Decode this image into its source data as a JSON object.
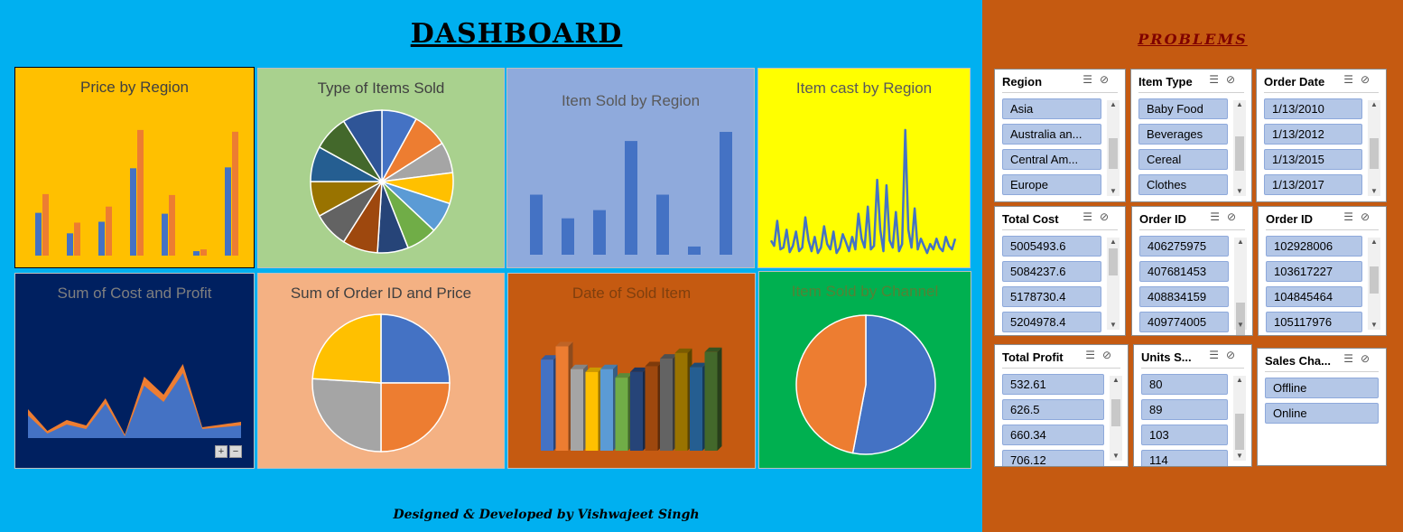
{
  "header": {
    "title": "DASHBOARD",
    "problems_title": "PROBLEMS",
    "footer": "Designed & Developed by Vishwajeet Singh"
  },
  "colors": {
    "left_bg": "#00B0F0",
    "right_bg": "#C55A11",
    "blue": "#4472C4",
    "orange": "#ED7D31",
    "gray": "#A5A5A5",
    "gold": "#FFC000",
    "lightblue": "#5B9BD5",
    "green": "#70AD47"
  },
  "panels": {
    "price_by_region": {
      "title": "Price by Region",
      "bg": "#FFC000"
    },
    "type_items_sold": {
      "title": "Type of Items Sold",
      "bg": "#A9D18E"
    },
    "item_sold_region": {
      "title": "Item Sold by Region",
      "bg": "#8FAADC"
    },
    "item_cast_region": {
      "title": "Item cast by Region",
      "bg": "#FFFF00"
    },
    "cost_profit": {
      "title": "Sum of Cost and Profit",
      "bg": "#002060"
    },
    "orderid_price": {
      "title": "Sum of Order ID and Price",
      "bg": "#F4B183"
    },
    "date_sold": {
      "title": "Date of Sold Item",
      "bg": "#C55A11"
    },
    "sold_channel": {
      "title": "Item Sold by Channel",
      "bg": "#00B050"
    }
  },
  "chart_data": [
    {
      "type": "bar",
      "title": "Price by Region",
      "series": [
        {
          "values": [
            48,
            25,
            38,
            98,
            47,
            5,
            99
          ]
        },
        {
          "values": [
            69,
            37,
            55,
            141,
            68,
            7,
            139
          ]
        }
      ],
      "ylim": [
        0,
        150
      ]
    },
    {
      "type": "pie",
      "title": "Type of Items Sold",
      "values": [
        8,
        8,
        7,
        7,
        7,
        7,
        7,
        8,
        8,
        8,
        8,
        8,
        9
      ],
      "colors": [
        "#4472C4",
        "#ED7D31",
        "#A5A5A5",
        "#FFC000",
        "#5B9BD5",
        "#70AD47",
        "#264478",
        "#9E480E",
        "#636363",
        "#997300",
        "#255E91",
        "#43682B",
        "#2F5597"
      ]
    },
    {
      "type": "bar",
      "title": "Item Sold by Region",
      "values": [
        66,
        40,
        49,
        125,
        66,
        9,
        135
      ],
      "ylim": [
        0,
        140
      ]
    },
    {
      "type": "line",
      "title": "Item cast by Region",
      "values": [
        18,
        12,
        40,
        8,
        10,
        30,
        5,
        12,
        28,
        6,
        10,
        44,
        18,
        6,
        22,
        4,
        10,
        34,
        14,
        8,
        28,
        4,
        10,
        25,
        16,
        6,
        22,
        8,
        48,
        20,
        10,
        56,
        8,
        12,
        86,
        30,
        6,
        80,
        18,
        10,
        50,
        6,
        14,
        142,
        30,
        10,
        54,
        8,
        20,
        12,
        4,
        14,
        8,
        20,
        10,
        6,
        22,
        12,
        8,
        20
      ],
      "ylim": [
        0,
        150
      ]
    },
    {
      "type": "area",
      "title": "Sum of Cost and Profit",
      "series": [
        {
          "values": [
            25,
            5,
            15,
            10,
            38,
            2,
            58,
            40,
            72,
            10,
            12,
            14
          ]
        },
        {
          "values": [
            32,
            8,
            20,
            14,
            44,
            4,
            68,
            48,
            82,
            12,
            15,
            18
          ]
        }
      ],
      "ylim": [
        0,
        100
      ]
    },
    {
      "type": "pie",
      "title": "Sum of Order ID and Price",
      "values": [
        25,
        25,
        26,
        24
      ],
      "colors": [
        "#4472C4",
        "#ED7D31",
        "#A5A5A5",
        "#FFC000"
      ]
    },
    {
      "type": "bar",
      "title": "Date of Sold Item",
      "values": [
        96,
        110,
        86,
        83,
        86,
        77,
        83,
        89,
        97,
        103,
        88,
        104
      ],
      "colors": [
        "#4472C4",
        "#ED7D31",
        "#A5A5A5",
        "#FFC000",
        "#5B9BD5",
        "#70AD47",
        "#264478",
        "#9E480E",
        "#636363",
        "#997300",
        "#255E91",
        "#43682B"
      ],
      "ylim": [
        0,
        120
      ]
    },
    {
      "type": "pie",
      "title": "Item Sold by Channel",
      "values": [
        53,
        47
      ],
      "colors": [
        "#4472C4",
        "#ED7D31"
      ]
    }
  ],
  "slicers": [
    {
      "header": "Region",
      "items": [
        "Asia",
        "Australia an...",
        "Central Am...",
        "Europe"
      ]
    },
    {
      "header": "Item Type",
      "items": [
        "Baby Food",
        "Beverages",
        "Cereal",
        "Clothes"
      ]
    },
    {
      "header": "Order Date",
      "items": [
        "1/13/2010",
        "1/13/2012",
        "1/13/2015",
        "1/13/2017"
      ]
    },
    {
      "header": "Total Cost",
      "items": [
        "5005493.6",
        "5084237.6",
        "5178730.4",
        "5204978.4"
      ]
    },
    {
      "header": "Order ID",
      "items": [
        "406275975",
        "407681453",
        "408834159",
        "409774005"
      ]
    },
    {
      "header": "Order ID",
      "items": [
        "102928006",
        "103617227",
        "104845464",
        "105117976"
      ]
    },
    {
      "header": "Total Profit",
      "items": [
        "532.61",
        "626.5",
        "660.34",
        "706.12"
      ]
    },
    {
      "header": "Units S...",
      "items": [
        "80",
        "89",
        "103",
        "114"
      ]
    },
    {
      "header": "Sales Cha...",
      "items": [
        "Offline",
        "Online"
      ]
    }
  ],
  "zoom_controls": {
    "plus": "+",
    "minus": "−"
  }
}
